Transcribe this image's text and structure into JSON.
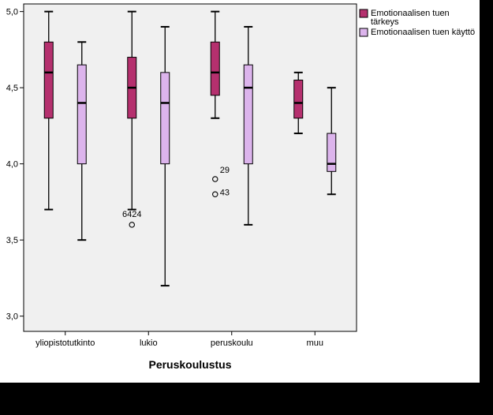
{
  "chart_data": {
    "type": "boxplot",
    "xlabel": "Peruskoulustus",
    "ylabel": "",
    "ylim": [
      2.9,
      5.05
    ],
    "yticks": [
      {
        "value": 3.0,
        "label": "3,0"
      },
      {
        "value": 3.5,
        "label": "3,5"
      },
      {
        "value": 4.0,
        "label": "4,0"
      },
      {
        "value": 4.5,
        "label": "4,5"
      },
      {
        "value": 5.0,
        "label": "5,0"
      }
    ],
    "categories": [
      "yliopistotutkinto",
      "lukio",
      "peruskoulu",
      "muu"
    ],
    "legend_position": "top-right",
    "grid": false,
    "series": [
      {
        "name": "Emotionaalisen tuen tärkeys",
        "legend_lines": [
          "Emotionaalisen tuen",
          "tärkeys"
        ],
        "color": "#b5306e",
        "boxes": [
          {
            "min": 3.7,
            "q1": 4.3,
            "median": 4.6,
            "q3": 4.8,
            "max": 5.0,
            "outliers": []
          },
          {
            "min": 3.7,
            "q1": 4.3,
            "median": 4.5,
            "q3": 4.7,
            "max": 5.0,
            "outliers": [
              {
                "value": 3.6,
                "label": "6424"
              }
            ]
          },
          {
            "min": 4.3,
            "q1": 4.45,
            "median": 4.6,
            "q3": 4.8,
            "max": 5.0,
            "outliers": [
              {
                "value": 3.9,
                "label": "29"
              },
              {
                "value": 3.8,
                "label": "43"
              }
            ]
          },
          {
            "min": 4.2,
            "q1": 4.3,
            "median": 4.4,
            "q3": 4.55,
            "max": 4.6,
            "outliers": []
          }
        ]
      },
      {
        "name": "Emotionaalisen tuen käyttö",
        "legend_lines": [
          "Emotionaalisen tuen käyttö"
        ],
        "color": "#dcb4ec",
        "boxes": [
          {
            "min": 3.5,
            "q1": 4.0,
            "median": 4.4,
            "q3": 4.65,
            "max": 4.8,
            "outliers": []
          },
          {
            "min": 3.2,
            "q1": 4.0,
            "median": 4.4,
            "q3": 4.6,
            "max": 4.9,
            "outliers": []
          },
          {
            "min": 3.6,
            "q1": 4.0,
            "median": 4.5,
            "q3": 4.65,
            "max": 4.9,
            "outliers": []
          },
          {
            "min": 3.8,
            "q1": 3.95,
            "median": 4.0,
            "q3": 4.2,
            "max": 4.5,
            "outliers": []
          }
        ]
      }
    ]
  }
}
